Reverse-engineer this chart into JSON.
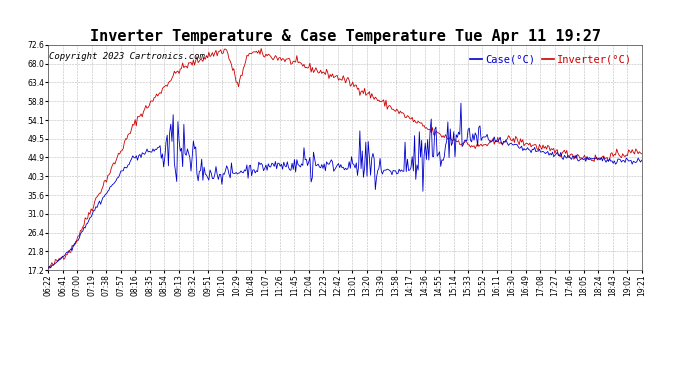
{
  "title": "Inverter Temperature & Case Temperature Tue Apr 11 19:27",
  "copyright": "Copyright 2023 Cartronics.com",
  "legend_case": "Case(°C)",
  "legend_inverter": "Inverter(°C)",
  "case_color": "#0000cc",
  "inverter_color": "#cc0000",
  "background_color": "#ffffff",
  "grid_color": "#bbbbbb",
  "ylim": [
    17.2,
    72.6
  ],
  "yticks": [
    17.2,
    21.8,
    26.4,
    31.0,
    35.6,
    40.3,
    44.9,
    49.5,
    54.1,
    58.8,
    63.4,
    68.0,
    72.6
  ],
  "title_fontsize": 11,
  "copyright_fontsize": 6.5,
  "legend_fontsize": 7.5,
  "tick_fontsize": 5.5,
  "x_labels": [
    "06:22",
    "06:41",
    "07:00",
    "07:19",
    "07:38",
    "07:57",
    "08:16",
    "08:35",
    "08:54",
    "09:13",
    "09:32",
    "09:51",
    "10:10",
    "10:29",
    "10:48",
    "11:07",
    "11:26",
    "11:45",
    "12:04",
    "12:23",
    "12:42",
    "13:01",
    "13:20",
    "13:39",
    "13:58",
    "14:17",
    "14:36",
    "14:55",
    "15:14",
    "15:33",
    "15:52",
    "16:11",
    "16:30",
    "16:49",
    "17:08",
    "17:27",
    "17:46",
    "18:05",
    "18:24",
    "18:43",
    "19:02",
    "19:21"
  ]
}
